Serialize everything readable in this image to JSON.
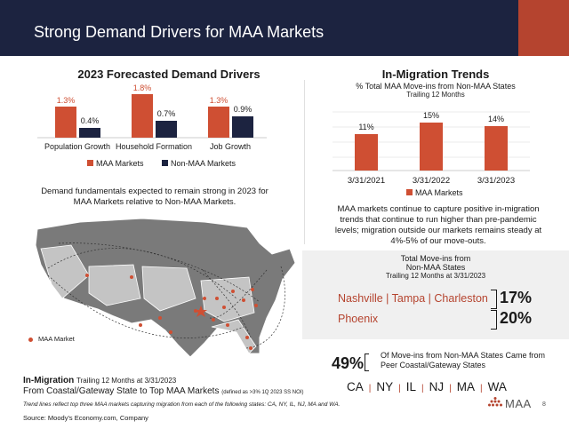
{
  "header": {
    "title": "Strong Demand Drivers for MAA Markets"
  },
  "colors": {
    "header_bg": "#1c2340",
    "accent": "#b5442f",
    "maa": "#cf4f33",
    "non_maa": "#1c2340"
  },
  "demand_chart": {
    "title": "2023 Forecasted Demand Drivers",
    "legend": [
      "MAA Markets",
      "Non-MAA Markets"
    ],
    "data_labels": {
      "population_maa": "1.3%",
      "population_non": "0.4%",
      "household_maa": "1.8%",
      "household_non": "0.7%",
      "job_maa": "1.3%",
      "job_non": "0.9%"
    }
  },
  "demand_text": "Demand fundamentals expected to remain strong in 2023 for MAA Markets relative to Non-MAA Markets.",
  "migration_chart": {
    "title": "In-Migration Trends",
    "subtitle": "% Total MAA Move-ins from Non-MAA States",
    "subtitle2": "Trailing 12 Months",
    "legend": "MAA Markets",
    "data_labels": [
      "11%",
      "15%",
      "14%"
    ]
  },
  "migration_text": "MAA markets continue to capture positive in-migration trends that continue to run higher than pre-pandemic levels; migration outside our markets remains steady at 4%-5% of our move-outs.",
  "panel": {
    "title1": "Total Move-ins from",
    "title2": "Non-MAA States",
    "subtitle": "Trailing 12 Months at 3/31/2023",
    "row1_cities": "Nashville | Tampa | Charleston",
    "row1_pct": "17%",
    "row2_city": "Phoenix",
    "row2_pct": "20%"
  },
  "gateway": {
    "pct": "49%",
    "text1": "Of Move-ins from Non-MAA States Came from",
    "text2": "Peer Coastal/Gateway States",
    "states": [
      "CA",
      "NY",
      "IL",
      "NJ",
      "MA",
      "WA"
    ]
  },
  "map": {
    "legend": "MAA Market",
    "caption_bold": "In-Migration",
    "caption_sub": "Trailing 12 Months at 3/31/2023",
    "caption_line2": "From Coastal/Gateway State to Top MAA Markets",
    "caption_note": "(defined as >3% 1Q 2023 SS NOI)"
  },
  "footnote": "Trend lines reflect top three MAA markets capturing migration from each of the following states: CA, NY, IL, NJ, MA and WA.",
  "source": "Source: Moody's Economy.com, Company",
  "brand": {
    "logo_text": "MAA",
    "page_number": "8"
  },
  "chart_data": [
    {
      "type": "bar",
      "title": "2023 Forecasted Demand Drivers",
      "categories": [
        "Population Growth",
        "Household Formation",
        "Job Growth"
      ],
      "series": [
        {
          "name": "MAA Markets",
          "values": [
            1.3,
            1.8,
            1.3
          ]
        },
        {
          "name": "Non-MAA Markets",
          "values": [
            0.4,
            0.7,
            0.9
          ]
        }
      ],
      "ylim": [
        0,
        1.8
      ],
      "legend": "bottom",
      "grid": false
    },
    {
      "type": "bar",
      "title": "In-Migration Trends",
      "subtitle": "% Total MAA Move-ins from Non-MAA States",
      "categories": [
        "3/31/2021",
        "3/31/2022",
        "3/31/2023"
      ],
      "series": [
        {
          "name": "MAA Markets",
          "values": [
            11,
            15,
            14
          ]
        }
      ],
      "ylim": [
        0,
        16
      ],
      "legend": "bottom",
      "grid": true
    }
  ]
}
